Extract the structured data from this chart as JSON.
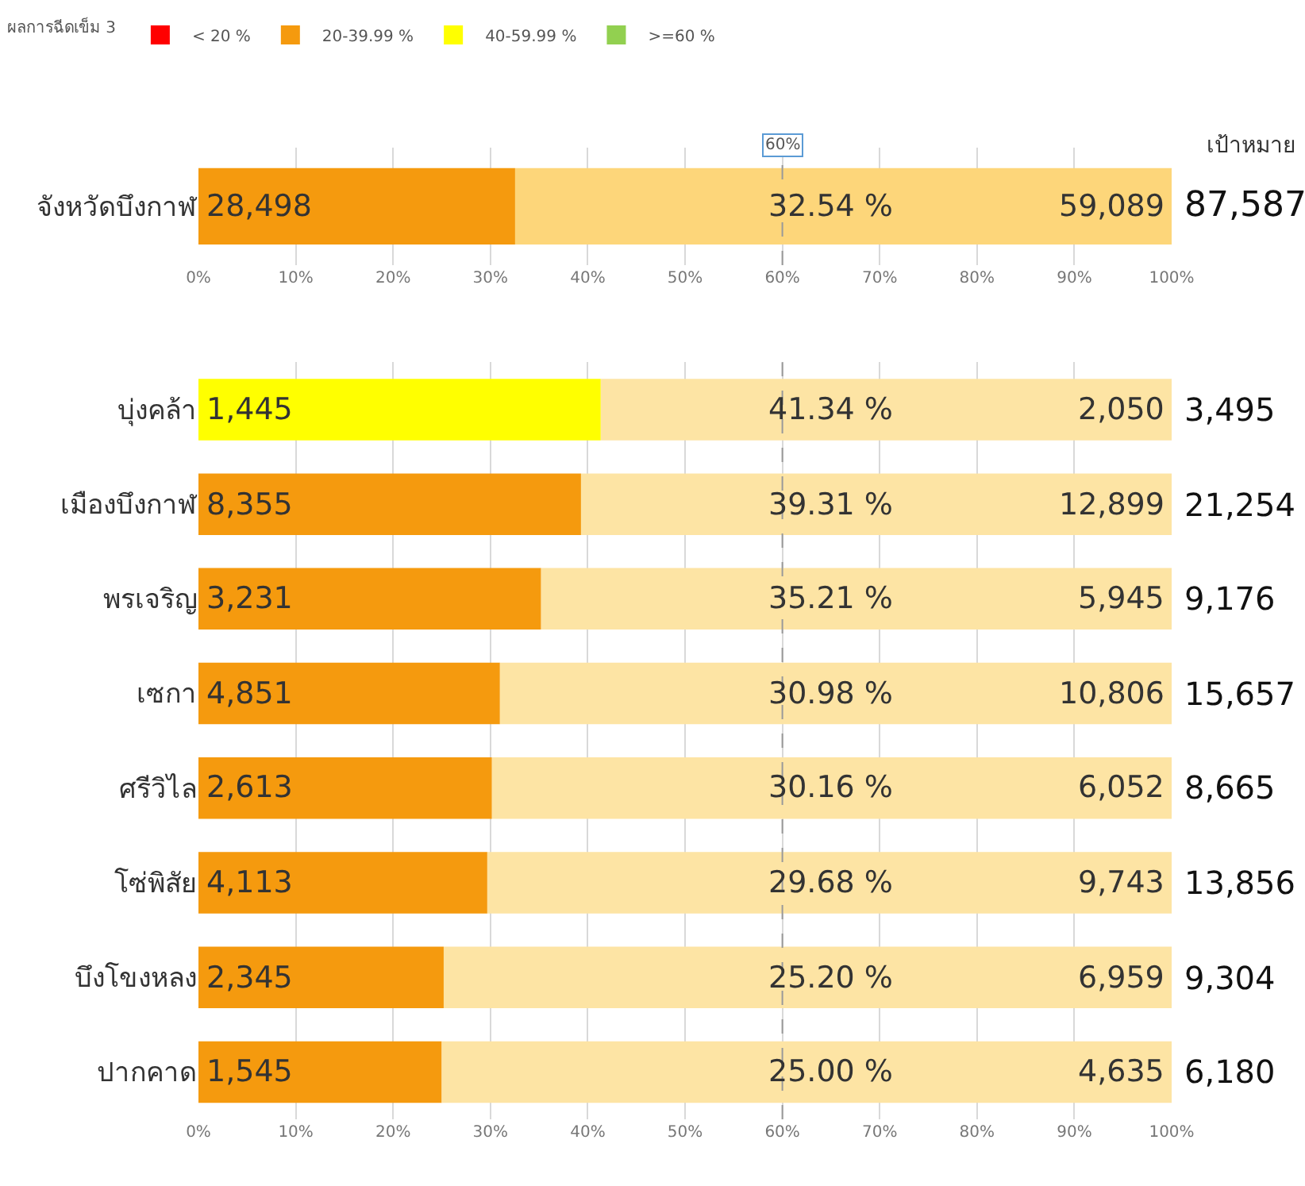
{
  "chart_data": [
    {
      "type": "bar",
      "orientation": "horizontal",
      "stacked": true,
      "legend": "top left",
      "legend_title": "ผลการฉีดเข็ม 3",
      "grid": "x",
      "categories": [
        "จังหวัดบึงกาฬ"
      ],
      "series": [
        {
          "name": "< 20 %",
          "color": "#ff0000",
          "values": [
            null
          ]
        },
        {
          "name": "20-39.99 %",
          "color": "#f59a0e",
          "values": [
            32.54
          ]
        },
        {
          "name": "40-59.99 %",
          "color": "#ffff00",
          "values": [
            null
          ]
        },
        {
          "name": ">=60 %",
          "color": "#92d050",
          "values": [
            null
          ]
        },
        {
          "color": "#fdd67a",
          "values": [
            67.46
          ]
        }
      ],
      "xlim": [
        0,
        100
      ],
      "xticks": [
        {
          "value": 0,
          "label": "0%"
        },
        {
          "value": 10,
          "label": "10%"
        },
        {
          "value": 20,
          "label": "20%"
        },
        {
          "value": 30,
          "label": "30%"
        },
        {
          "value": 40,
          "label": "40%"
        },
        {
          "value": 50,
          "label": "50%"
        },
        {
          "value": 60,
          "label": "60%"
        },
        {
          "value": 70,
          "label": "70%"
        },
        {
          "value": 80,
          "label": "80%"
        },
        {
          "value": 90,
          "label": "90%"
        },
        {
          "value": 100,
          "label": "100%"
        }
      ],
      "ref_lines": [
        {
          "axis": "x",
          "value": 60,
          "label": "60%",
          "line_style": "dashed",
          "color": "#999999"
        }
      ],
      "annotations": [
        "เป้าหมาย",
        "28,498",
        "32.54 %",
        "59,089",
        "87,587"
      ]
    },
    {
      "type": "bar",
      "orientation": "horizontal",
      "stacked": true,
      "grid": "x",
      "categories": [
        "บุ่งคล้า",
        "เมืองบึงกาฬ",
        "พรเจริญ",
        "เซกา",
        "ศรีวิไล",
        "โซ่พิสัย",
        "บึงโขงหลง",
        "ปากคาด"
      ],
      "series": [
        {
          "colors": [
            "#ffff00",
            "#f59a0e",
            "#f59a0e",
            "#f59a0e",
            "#f59a0e",
            "#f59a0e",
            "#f59a0e",
            "#f59a0e"
          ],
          "values": [
            41.34,
            39.31,
            35.21,
            30.98,
            30.16,
            29.68,
            25.2,
            25.0
          ]
        },
        {
          "color": "#fde4a4",
          "values": [
            58.66,
            60.69,
            64.79,
            69.02,
            69.84,
            70.32,
            74.8,
            75.0
          ]
        }
      ],
      "xlim": [
        0,
        100
      ],
      "xticks": [
        {
          "value": 0,
          "label": "0%"
        },
        {
          "value": 10,
          "label": "10%"
        },
        {
          "value": 20,
          "label": "20%"
        },
        {
          "value": 30,
          "label": "30%"
        },
        {
          "value": 40,
          "label": "40%"
        },
        {
          "value": 50,
          "label": "50%"
        },
        {
          "value": 60,
          "label": "60%"
        },
        {
          "value": 70,
          "label": "70%"
        },
        {
          "value": 80,
          "label": "80%"
        },
        {
          "value": 90,
          "label": "90%"
        },
        {
          "value": 100,
          "label": "100%"
        }
      ],
      "ref_lines": [
        {
          "axis": "x",
          "value": 60,
          "line_style": "dashed",
          "color": "#999999"
        }
      ],
      "annotations": [
        "1,445",
        "41.34 %",
        "2,050",
        "3,495",
        "8,355",
        "39.31 %",
        "12,899",
        "21,254",
        "3,231",
        "35.21 %",
        "5,945",
        "9,176",
        "4,851",
        "30.98 %",
        "10,806",
        "15,657",
        "2,613",
        "30.16 %",
        "6,052",
        "8,665",
        "4,113",
        "29.68 %",
        "9,743",
        "13,856",
        "2,345",
        "25.20 %",
        "6,959",
        "9,304",
        "1,545",
        "25.00 %",
        "4,635",
        "6,180"
      ]
    }
  ]
}
